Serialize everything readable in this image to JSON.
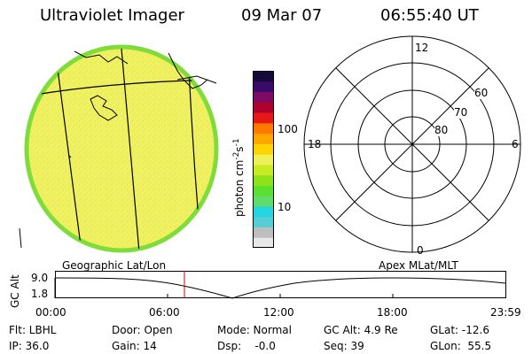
{
  "header": {
    "title": "Ultraviolet Imager",
    "date": "09 Mar 07",
    "time": "06:55:40 UT"
  },
  "colorbar": {
    "unit_label": "photon cm",
    "unit_sup1": "-2",
    "unit_mid": "s",
    "unit_sup2": "-1",
    "tick_labels": [
      "100",
      "10"
    ],
    "colors": [
      "#e8e8e8",
      "#bdbdbd",
      "#55cfd6",
      "#25d5e0",
      "#5fdc6a",
      "#5ae02e",
      "#8fe21a",
      "#c8ec22",
      "#eef05a",
      "#ffd400",
      "#ffa500",
      "#ff7800",
      "#e81818",
      "#b0002e",
      "#7e0a62",
      "#3a0a6a",
      "#160a3a"
    ]
  },
  "polar": {
    "labels": {
      "top": "12",
      "bottom": "0",
      "left": "18",
      "right": "6"
    },
    "lat_labels": [
      "60",
      "70",
      "80"
    ]
  },
  "timeline": {
    "left_title": "Geographic Lat/Lon",
    "right_title": "Apex  MLat/MLT",
    "y_axis_label": "GC Alt",
    "y_max": "9.0",
    "y_min": "1.8",
    "times": [
      "00:00",
      "06:00",
      "12:00",
      "18:00",
      "23:59"
    ],
    "current_time_color": "#d40000"
  },
  "info": {
    "flt": "Flt: LBHL",
    "ip": "IP: 36.0",
    "door": "Door: Open",
    "gain": "Gain: 14",
    "mode": "Mode: Normal",
    "dsp": "Dsp:    -0.0",
    "gcalt": "GC Alt: 4.9 Re",
    "seq": "Seq: 39",
    "glat": "GLat: -12.6",
    "glon": "GLon:  55.5"
  }
}
